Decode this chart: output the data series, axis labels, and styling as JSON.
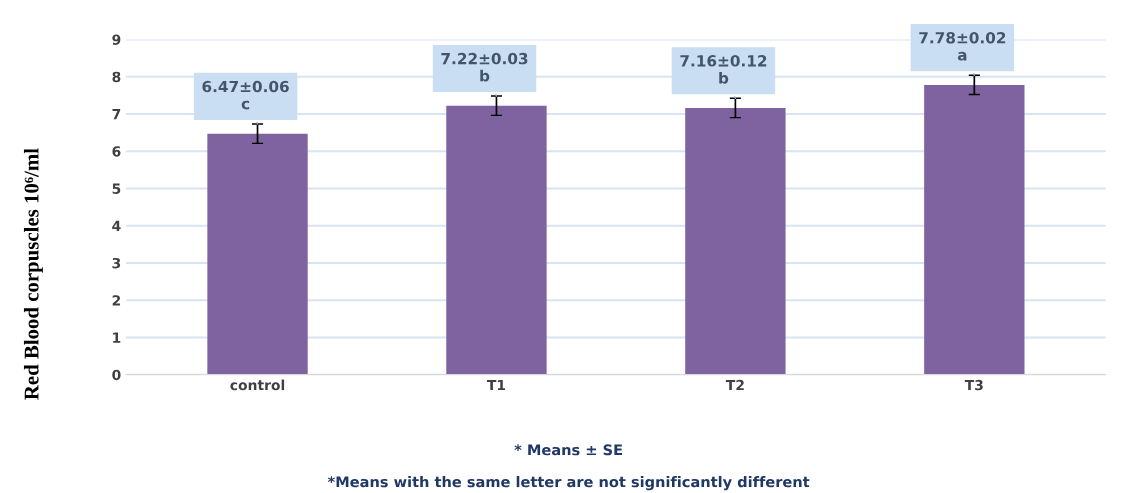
{
  "chart_data": {
    "type": "bar",
    "ylabel": "Red Blood corpuscles 10⁶/ml",
    "categories": [
      "control",
      "T1",
      "T2",
      "T3"
    ],
    "values": [
      6.47,
      7.22,
      7.16,
      7.78
    ],
    "errors": [
      0.26,
      0.26,
      0.26,
      0.26
    ],
    "value_labels": [
      "6.47±0.06\nc",
      "7.22±0.03\nb",
      "7.16±0.12\nb",
      "7.78±0.02\na"
    ],
    "color": "#7f62a0",
    "ylim": [
      0,
      9
    ],
    "yticks": [
      0,
      1,
      2,
      3,
      4,
      5,
      6,
      7,
      8,
      9
    ],
    "grid": "y",
    "annotations": [
      "* Means ± SE",
      "*Means with the same letter are not significantly different"
    ]
  }
}
